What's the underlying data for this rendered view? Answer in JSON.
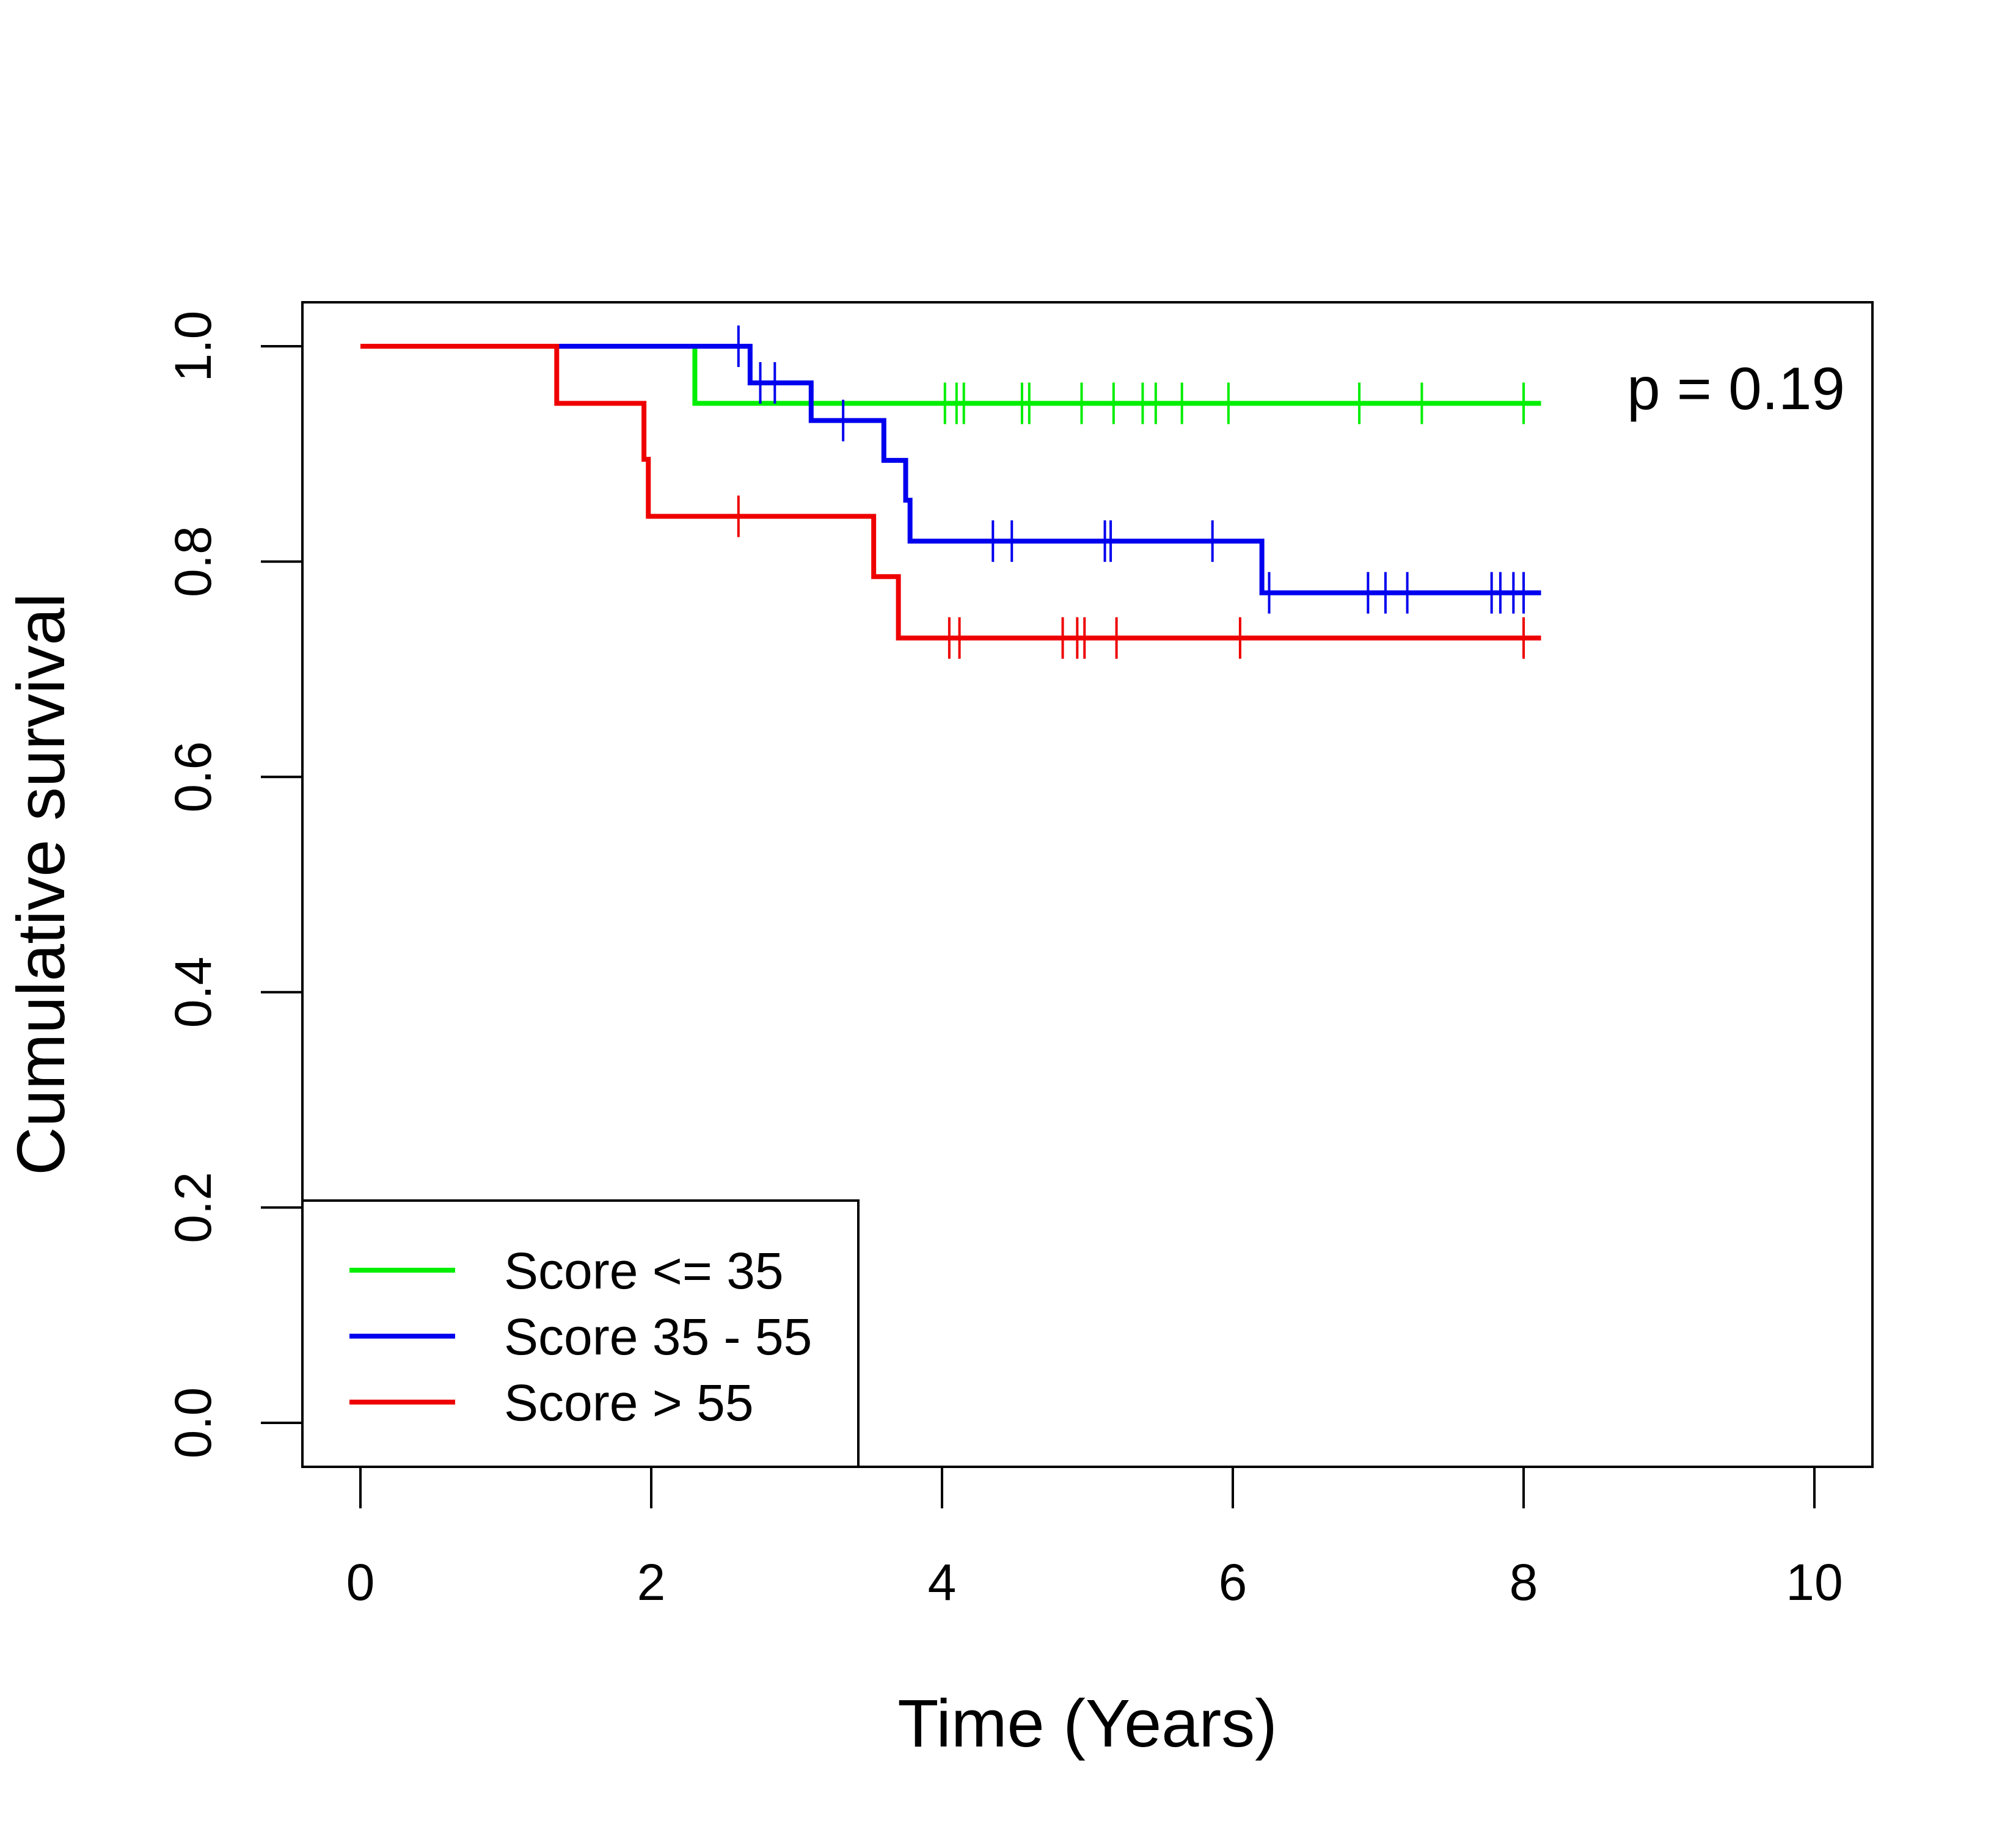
{
  "chart_data": {
    "type": "line",
    "subtype": "kaplan-meier step",
    "title": "",
    "xlabel": "Time (Years)",
    "ylabel": "Cumulative survival",
    "xlim": [
      0,
      10
    ],
    "ylim": [
      0,
      1
    ],
    "xticks": [
      "0",
      "2",
      "4",
      "6",
      "8",
      "10"
    ],
    "yticks": [
      "0.0",
      "0.2",
      "0.4",
      "0.6",
      "0.8",
      "1.0"
    ],
    "grid": false,
    "legend_position": "bottom-left",
    "annotation": "p = 0.19",
    "series": [
      {
        "name": "Score <= 35",
        "color": "#00ee00",
        "steps": [
          [
            0,
            1.0
          ],
          [
            2.3,
            0.947
          ],
          [
            8.12,
            0.947
          ]
        ],
        "censored": [
          4.02,
          4.1,
          4.15,
          4.55,
          4.6,
          4.96,
          5.18,
          5.38,
          5.47,
          5.65,
          5.97,
          6.87,
          7.3,
          8.0
        ]
      },
      {
        "name": "Score 35 - 55",
        "color": "#0000ee",
        "steps": [
          [
            0,
            1.0
          ],
          [
            2.68,
            0.966
          ],
          [
            3.1,
            0.931
          ],
          [
            3.6,
            0.894
          ],
          [
            3.75,
            0.857
          ],
          [
            3.78,
            0.819
          ],
          [
            6.2,
            0.771
          ],
          [
            8.12,
            0.771
          ]
        ],
        "censored": [
          2.6,
          2.75,
          2.85,
          3.32,
          4.35,
          4.48,
          5.12,
          5.16,
          5.86,
          6.25,
          6.93,
          7.05,
          7.2,
          7.78,
          7.84,
          7.93,
          8.0
        ]
      },
      {
        "name": "Score > 55",
        "color": "#ee0000",
        "steps": [
          [
            0,
            1.0
          ],
          [
            1.35,
            0.947
          ],
          [
            1.95,
            0.895
          ],
          [
            1.98,
            0.842
          ],
          [
            3.53,
            0.786
          ],
          [
            3.7,
            0.729
          ],
          [
            8.12,
            0.729
          ]
        ],
        "censored": [
          2.6,
          4.05,
          4.12,
          4.83,
          4.93,
          4.98,
          5.2,
          6.05,
          8.0
        ]
      }
    ]
  }
}
